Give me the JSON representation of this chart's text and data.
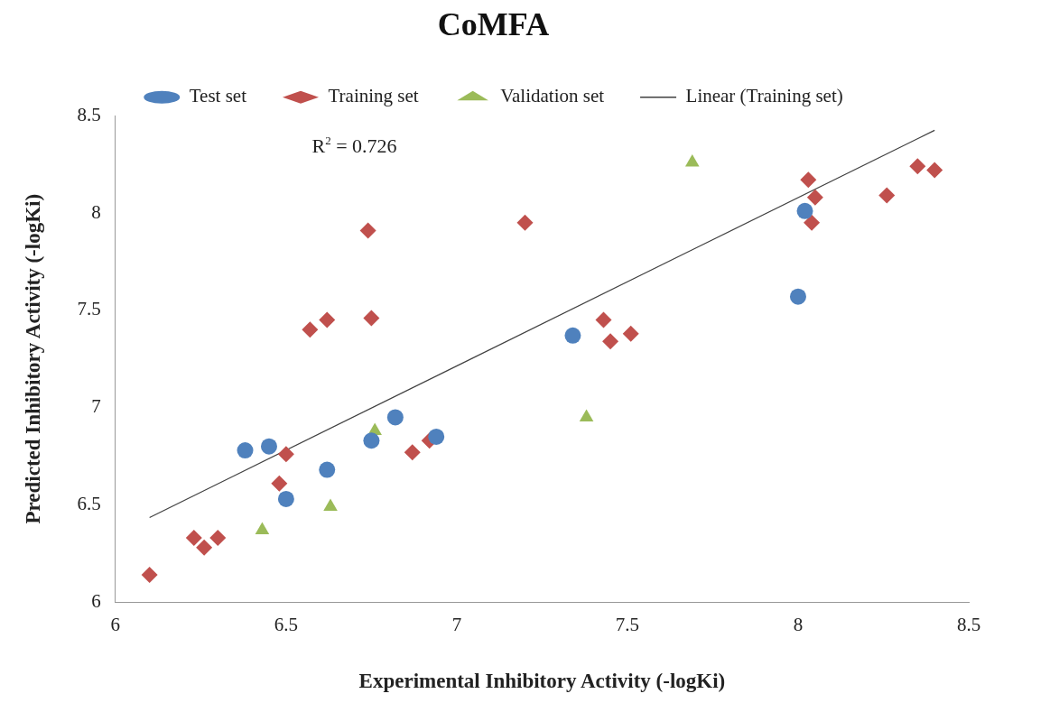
{
  "chart_data": {
    "type": "scatter",
    "title": "CoMFA",
    "xlabel": "Experimental Inhibitory Activity (-logKi)",
    "ylabel": "Predicted Inhibitory Activity (-logKi)",
    "xlim": [
      6,
      8.5
    ],
    "xticks": [
      6,
      6.5,
      7,
      7.5,
      8,
      8.5
    ],
    "ylim": [
      6,
      8.5
    ],
    "yticks": [
      6,
      6.5,
      7,
      7.5,
      8,
      8.5
    ],
    "grid": false,
    "legend": "top",
    "annotations": [
      "R$^{2}$ = 0.726"
    ],
    "series": [
      {
        "name": "Test set",
        "color": "#4f81bd",
        "marker": "circle",
        "x": [
          6.38,
          6.45,
          6.5,
          6.62,
          6.75,
          6.82,
          6.94,
          7.34,
          8.0,
          8.02
        ],
        "values": [
          6.78,
          6.8,
          6.53,
          6.68,
          6.83,
          6.95,
          6.85,
          7.37,
          7.57,
          8.01
        ]
      },
      {
        "name": "Training set",
        "color": "#c0504d",
        "marker": "diamond",
        "x": [
          6.1,
          6.23,
          6.26,
          6.3,
          6.48,
          6.5,
          6.57,
          6.62,
          6.74,
          6.75,
          6.87,
          6.92,
          7.2,
          7.43,
          7.45,
          7.51,
          8.03,
          8.05,
          8.04,
          8.26,
          8.35,
          8.4
        ],
        "values": [
          6.14,
          6.33,
          6.28,
          6.33,
          6.61,
          6.76,
          7.4,
          7.45,
          7.91,
          7.46,
          6.77,
          6.83,
          7.95,
          7.45,
          7.34,
          7.38,
          8.17,
          8.08,
          7.95,
          8.09,
          8.24,
          8.22
        ]
      },
      {
        "name": "Validation set",
        "color": "#9bbb59",
        "marker": "triangle",
        "x": [
          6.43,
          6.63,
          6.76,
          7.38,
          7.69
        ],
        "values": [
          6.37,
          6.49,
          6.88,
          6.95,
          8.26
        ]
      },
      {
        "name": "Linear (Training set)",
        "type": "line",
        "color": "#404040",
        "marker": "none",
        "x": [
          6.1,
          8.4
        ],
        "values": [
          6.435,
          8.425
        ]
      }
    ]
  }
}
